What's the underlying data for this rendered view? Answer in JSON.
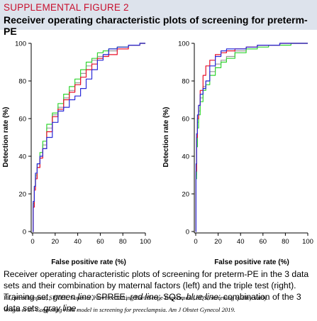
{
  "header": {
    "label": "SUPPLEMENTAL FIGURE 2",
    "title": "Receiver operating characteristic plots of screening for preterm-PE"
  },
  "colors": {
    "header_bg": "#dde3ec",
    "label_red": "#c8102e",
    "training": "#33d633",
    "spree": "#e8102a",
    "sqs": "#2a2ad8",
    "combined": "#9a9a9a"
  },
  "chart_data": [
    {
      "type": "line",
      "ylabel": "Detection rate (%)",
      "xlabel": "False positive rate (%)",
      "xlim": [
        0,
        100
      ],
      "ylim": [
        0,
        100
      ],
      "xticks": [
        "0",
        "20",
        "40",
        "60",
        "80",
        "100"
      ],
      "yticks": [
        "0",
        "20",
        "40",
        "60",
        "80",
        "100"
      ],
      "grid": false,
      "series": [
        {
          "color": "#9a9a9a",
          "x": [
            0,
            1,
            2,
            3,
            5,
            8,
            10,
            15,
            20,
            25,
            30,
            35,
            40,
            45,
            50,
            55,
            60,
            65,
            70,
            80,
            90,
            100
          ],
          "y": [
            0,
            14,
            23,
            29,
            34,
            40,
            46,
            55,
            62,
            66,
            71,
            75,
            79,
            84,
            88,
            91,
            93,
            94,
            96,
            98,
            99,
            100
          ]
        },
        {
          "color": "#33d633",
          "x": [
            0,
            1,
            2,
            3,
            5,
            8,
            10,
            15,
            20,
            25,
            30,
            35,
            40,
            45,
            50,
            55,
            60,
            65,
            70,
            80,
            90,
            100
          ],
          "y": [
            0,
            15,
            24,
            30,
            36,
            42,
            48,
            57,
            63,
            68,
            73,
            77,
            81,
            86,
            90,
            92,
            95,
            96,
            97,
            98,
            99,
            100
          ]
        },
        {
          "color": "#e8102a",
          "x": [
            0,
            1,
            2,
            3,
            5,
            8,
            10,
            15,
            20,
            25,
            30,
            35,
            40,
            45,
            50,
            55,
            60,
            65,
            70,
            80,
            90,
            100
          ],
          "y": [
            0,
            13,
            22,
            28,
            34,
            39,
            44,
            53,
            61,
            65,
            70,
            74,
            78,
            82,
            86,
            89,
            92,
            93,
            94,
            97,
            99,
            100
          ]
        },
        {
          "color": "#2a2ad8",
          "x": [
            0,
            1,
            2,
            3,
            5,
            8,
            10,
            15,
            20,
            25,
            30,
            35,
            40,
            45,
            50,
            55,
            60,
            65,
            70,
            80,
            90,
            100
          ],
          "y": [
            0,
            16,
            24,
            31,
            36,
            40,
            44,
            50,
            58,
            64,
            66,
            70,
            72,
            76,
            81,
            86,
            91,
            94,
            97,
            98,
            99,
            100
          ]
        }
      ]
    },
    {
      "type": "line",
      "ylabel": "Detection rate (%)",
      "xlabel": "False positive rate (%)",
      "xlim": [
        0,
        100
      ],
      "ylim": [
        0,
        100
      ],
      "xticks": [
        "0",
        "20",
        "40",
        "60",
        "80",
        "100"
      ],
      "yticks": [
        "0",
        "20",
        "40",
        "60",
        "80",
        "100"
      ],
      "grid": false,
      "series": [
        {
          "color": "#9a9a9a",
          "x": [
            0,
            0.5,
            1,
            2,
            3,
            5,
            8,
            10,
            15,
            20,
            25,
            30,
            40,
            50,
            60,
            70,
            80,
            90,
            100
          ],
          "y": [
            0,
            30,
            48,
            58,
            64,
            71,
            77,
            80,
            85,
            89,
            91,
            93,
            96,
            98,
            99,
            99,
            100,
            100,
            100
          ]
        },
        {
          "color": "#33d633",
          "x": [
            0,
            0.5,
            1,
            2,
            3,
            5,
            8,
            10,
            15,
            20,
            25,
            30,
            40,
            50,
            60,
            70,
            80,
            90,
            100
          ],
          "y": [
            0,
            28,
            45,
            55,
            62,
            69,
            75,
            78,
            83,
            87,
            90,
            92,
            95,
            97,
            98,
            99,
            99,
            100,
            100
          ]
        },
        {
          "color": "#e8102a",
          "x": [
            0,
            0.5,
            1,
            2,
            3,
            5,
            8,
            10,
            15,
            20,
            25,
            30,
            40,
            50,
            60,
            70,
            80,
            90,
            100
          ],
          "y": [
            0,
            32,
            50,
            60,
            67,
            75,
            83,
            88,
            91,
            94,
            95,
            96,
            97,
            98,
            99,
            99,
            100,
            100,
            100
          ]
        },
        {
          "color": "#2a2ad8",
          "x": [
            0,
            0.5,
            1,
            2,
            3,
            5,
            8,
            10,
            15,
            20,
            25,
            30,
            40,
            50,
            60,
            70,
            80,
            90,
            100
          ],
          "y": [
            0,
            36,
            52,
            62,
            67,
            73,
            76,
            80,
            88,
            93,
            96,
            97,
            97,
            98,
            99,
            99,
            100,
            100,
            100
          ]
        }
      ]
    }
  ],
  "caption": {
    "text": "Receiver operating characteristic plots of screening for preterm-PE in the 3 data sets and their combination by maternal factors (left) and the triple test (right). Training set, green line; SPREE, red line; SQS, blue line; combination of the 3 data sets, gray line.",
    "abbreviations": "PE, preeclampsia; SPREE, Superior Province Rifting EarthScope Experiment; SQS, screening quality study.",
    "citation": "Wright et al. Competing risks model in screening for preeclampsia. Am J Obstet Gynecol 2019."
  }
}
